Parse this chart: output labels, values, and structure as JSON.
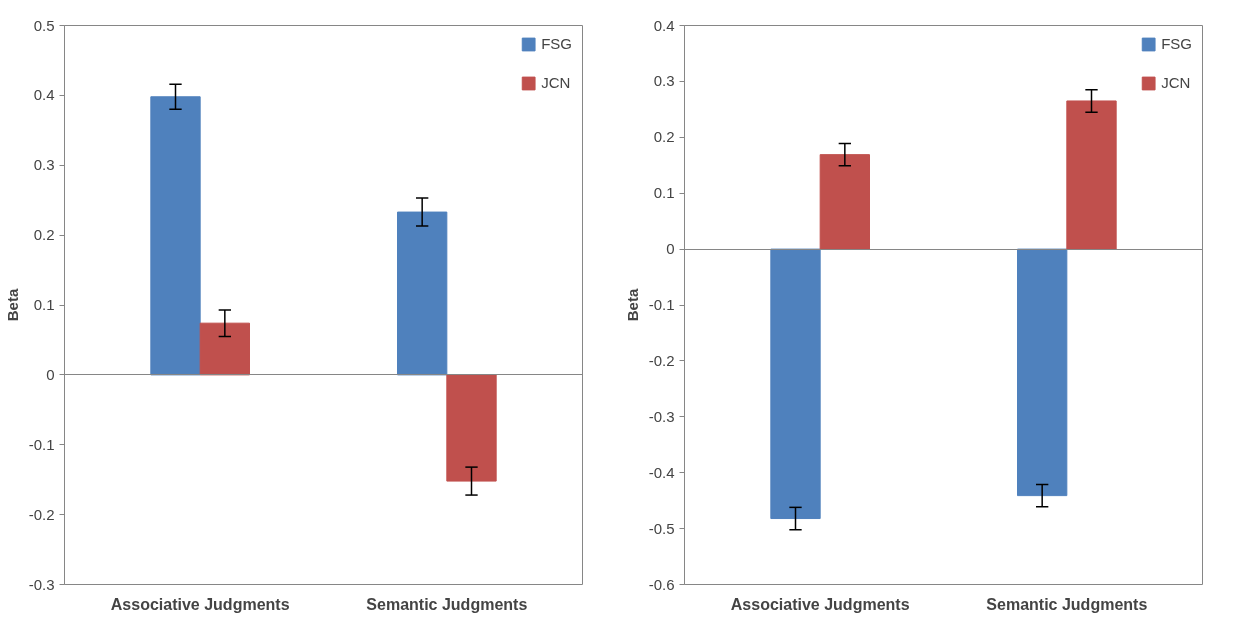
{
  "chart_data": [
    {
      "type": "bar",
      "ylabel": "Beta",
      "categories": [
        "Associative Judgments",
        "Semantic Judgments"
      ],
      "ylim": [
        -0.3,
        0.5
      ],
      "yticks": [
        -0.3,
        -0.2,
        -0.1,
        0,
        0.1,
        0.2,
        0.3,
        0.4,
        0.5
      ],
      "legend": "top right",
      "series": [
        {
          "name": "FSG",
          "color": "#4f81bd",
          "values": [
            0.398,
            0.233
          ],
          "errors": [
            0.018,
            0.02
          ]
        },
        {
          "name": "JCN",
          "color": "#c0504d",
          "values": [
            0.074,
            -0.152
          ],
          "errors": [
            0.019,
            0.02
          ]
        }
      ]
    },
    {
      "type": "bar",
      "ylabel": "Beta",
      "categories": [
        "Associative Judgments",
        "Semantic Judgments"
      ],
      "ylim": [
        -0.6,
        0.4
      ],
      "yticks": [
        -0.6,
        -0.5,
        -0.4,
        -0.3,
        -0.2,
        -0.1,
        0,
        0.1,
        0.2,
        0.3,
        0.4
      ],
      "legend": "top right",
      "series": [
        {
          "name": "FSG",
          "color": "#4f81bd",
          "values": [
            -0.482,
            -0.441
          ],
          "errors": [
            0.02,
            0.02
          ]
        },
        {
          "name": "JCN",
          "color": "#c0504d",
          "values": [
            0.169,
            0.265
          ],
          "errors": [
            0.02,
            0.02
          ]
        }
      ]
    }
  ]
}
